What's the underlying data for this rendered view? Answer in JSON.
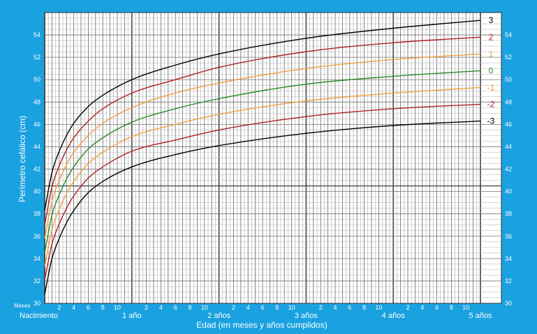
{
  "chart_data": {
    "type": "line",
    "ylabel": "Perímetro cefálico (cm)",
    "xlabel": "Edad (en meses y años cumplidos)",
    "x_unit_label": "Meses",
    "ylim": [
      30,
      56
    ],
    "y_ticks": [
      30,
      32,
      34,
      36,
      38,
      40,
      42,
      44,
      46,
      48,
      50,
      52,
      54
    ],
    "xlim": [
      0,
      60
    ],
    "x_month_ticks": [
      {
        "month": 2,
        "label": "2"
      },
      {
        "month": 4,
        "label": "4"
      },
      {
        "month": 6,
        "label": "6"
      },
      {
        "month": 8,
        "label": "8"
      },
      {
        "month": 10,
        "label": "10"
      },
      {
        "month": 14,
        "label": "2"
      },
      {
        "month": 16,
        "label": "4"
      },
      {
        "month": 18,
        "label": "6"
      },
      {
        "month": 20,
        "label": "8"
      },
      {
        "month": 22,
        "label": "10"
      },
      {
        "month": 26,
        "label": "2"
      },
      {
        "month": 28,
        "label": "4"
      },
      {
        "month": 30,
        "label": "6"
      },
      {
        "month": 32,
        "label": "8"
      },
      {
        "month": 34,
        "label": "10"
      },
      {
        "month": 38,
        "label": "2"
      },
      {
        "month": 40,
        "label": "4"
      },
      {
        "month": 42,
        "label": "6"
      },
      {
        "month": 44,
        "label": "8"
      },
      {
        "month": 46,
        "label": "10"
      },
      {
        "month": 50,
        "label": "2"
      },
      {
        "month": 52,
        "label": "4"
      },
      {
        "month": 54,
        "label": "6"
      },
      {
        "month": 56,
        "label": "8"
      },
      {
        "month": 58,
        "label": "10"
      }
    ],
    "x_year_labels": [
      {
        "month": 0,
        "label": "Nacimiento"
      },
      {
        "month": 12,
        "label": "1 año"
      },
      {
        "month": 24,
        "label": "2 años"
      },
      {
        "month": 36,
        "label": "3 años"
      },
      {
        "month": 48,
        "label": "4 años"
      },
      {
        "month": 60,
        "label": "5 años"
      }
    ],
    "x": [
      0,
      1,
      2,
      3,
      4,
      6,
      8,
      12,
      18,
      24,
      36,
      48,
      60
    ],
    "series": [
      {
        "name": "3",
        "color": "#000000",
        "values": [
          38.3,
          41.7,
          43.6,
          45.0,
          46.1,
          47.6,
          48.6,
          50.0,
          51.3,
          52.3,
          53.7,
          54.6,
          55.3
        ]
      },
      {
        "name": "2",
        "color": "#b02020",
        "values": [
          37.0,
          40.4,
          42.3,
          43.7,
          44.8,
          46.3,
          47.4,
          48.8,
          50.0,
          51.1,
          52.5,
          53.3,
          53.8
        ]
      },
      {
        "name": "1",
        "color": "#f0a040",
        "values": [
          35.8,
          39.1,
          41.0,
          42.4,
          43.5,
          45.0,
          46.1,
          47.5,
          48.8,
          49.7,
          51.0,
          51.8,
          52.3
        ]
      },
      {
        "name": "0",
        "color": "#2a8a2a",
        "values": [
          34.5,
          37.9,
          39.7,
          41.1,
          42.2,
          43.8,
          44.8,
          46.2,
          47.4,
          48.3,
          49.6,
          50.3,
          50.8
        ]
      },
      {
        "name": "-1",
        "color": "#f0a040",
        "values": [
          33.3,
          36.6,
          38.4,
          39.8,
          40.9,
          42.5,
          43.5,
          44.9,
          46.0,
          46.9,
          48.1,
          48.8,
          49.3
        ]
      },
      {
        "name": "-2",
        "color": "#b02020",
        "values": [
          32.1,
          35.3,
          37.1,
          38.5,
          39.6,
          41.2,
          42.2,
          43.6,
          44.6,
          45.5,
          46.7,
          47.4,
          47.8
        ]
      },
      {
        "name": "-3",
        "color": "#000000",
        "values": [
          30.8,
          34.0,
          35.8,
          37.2,
          38.3,
          39.9,
          40.9,
          42.2,
          43.3,
          44.1,
          45.2,
          45.9,
          46.3
        ]
      }
    ],
    "grid": true,
    "background_color": "#1aa1e0",
    "plot_color": "#ffffff"
  }
}
